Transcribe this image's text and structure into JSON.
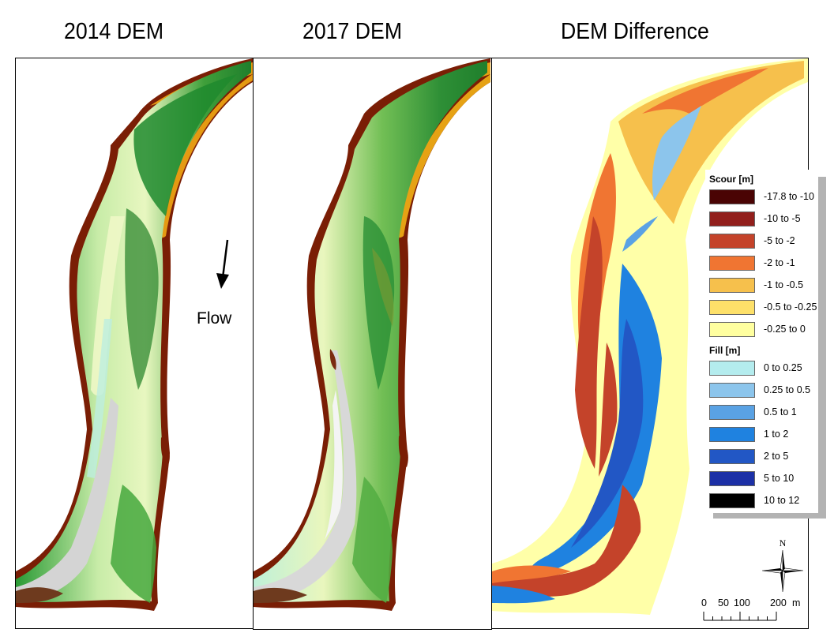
{
  "titles": {
    "panel_2014": "2014 DEM",
    "panel_2017": "2017 DEM",
    "panel_diff": "DEM Difference"
  },
  "flow": {
    "label": "Flow",
    "icon": "arrow-down-icon"
  },
  "legend": {
    "scour_heading": "Scour [m]",
    "scour_classes": [
      {
        "label": "-17.8 to -10",
        "color": "#4a0404"
      },
      {
        "label": "-10 to -5",
        "color": "#921f1c"
      },
      {
        "label": "-5 to -2",
        "color": "#c4432a"
      },
      {
        "label": "-2 to -1",
        "color": "#f07532"
      },
      {
        "label": "-1 to -0.5",
        "color": "#f6c04c"
      },
      {
        "label": "-0.5 to -0.25",
        "color": "#fde069"
      },
      {
        "label": "-0.25 to 0",
        "color": "#ffff9f"
      }
    ],
    "fill_heading": "Fill [m]",
    "fill_classes": [
      {
        "label": "0 to 0.25",
        "color": "#b4ecee"
      },
      {
        "label": "0.25 to 0.5",
        "color": "#8cc5ec"
      },
      {
        "label": "0.5 to 1",
        "color": "#5aa2e4"
      },
      {
        "label": "1 to 2",
        "color": "#1f82e0"
      },
      {
        "label": "2 to 5",
        "color": "#2257c5"
      },
      {
        "label": "5 to 10",
        "color": "#1c30a6"
      },
      {
        "label": "10 to 12",
        "color": "#000000"
      }
    ]
  },
  "north_arrow": {
    "label": "N",
    "icon": "north-arrow-icon"
  },
  "scale_bar": {
    "ticks": [
      "0",
      "50",
      "100",
      "200"
    ],
    "unit": "m"
  },
  "colors": {
    "dem_bank_dark": "#7a1e05",
    "dem_bank_orange": "#e59a12",
    "dem_green_dark": "#1e8a2e",
    "dem_green_mid": "#5fb548",
    "dem_green_light": "#b9e39a",
    "dem_pale": "#eef7c6",
    "dem_cyan": "#bdeee0",
    "dem_gray": "#cfcfcf",
    "dem_brown": "#6e3a1e"
  }
}
